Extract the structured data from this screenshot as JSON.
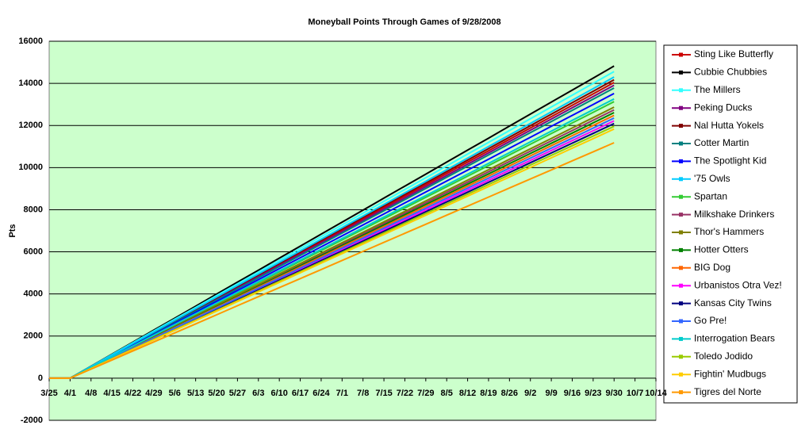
{
  "chart_data": {
    "type": "line",
    "title": "Moneyball Points  Through Games of 9/28/2008",
    "y_label": "Pts",
    "categories": [
      "3/25",
      "4/1",
      "4/8",
      "4/15",
      "4/22",
      "4/29",
      "5/6",
      "5/13",
      "5/20",
      "5/27",
      "6/3",
      "6/10",
      "6/17",
      "6/24",
      "7/1",
      "7/8",
      "7/15",
      "7/22",
      "7/29",
      "8/5",
      "8/12",
      "8/19",
      "8/26",
      "9/2",
      "9/9",
      "9/16",
      "9/23",
      "9/30",
      "10/7",
      "10/14"
    ],
    "ylim": [
      -2000,
      16000
    ],
    "yticks": [
      -2000,
      0,
      2000,
      4000,
      6000,
      8000,
      10000,
      12000,
      14000,
      16000
    ],
    "grid": true,
    "legend": "right",
    "series": [
      {
        "name": "Sting Like Butterfly",
        "color": "#cc0000",
        "values": [
          0,
          0,
          540,
          1080,
          1620,
          2160,
          2700,
          3240,
          3780,
          4320,
          4860,
          5400,
          5940,
          6480,
          7020,
          7560,
          8100,
          8640,
          9180,
          9720,
          10260,
          10800,
          11340,
          11880,
          12420,
          12960,
          13500,
          14040,
          null,
          null
        ]
      },
      {
        "name": "Cubbie Chubbies",
        "color": "#000000",
        "values": [
          0,
          0,
          570,
          1140,
          1710,
          2280,
          2850,
          3420,
          3990,
          4560,
          5130,
          5700,
          6270,
          6840,
          7410,
          7980,
          8550,
          9120,
          9690,
          10260,
          10830,
          11400,
          11970,
          12540,
          13110,
          13680,
          14250,
          14820,
          null,
          null
        ]
      },
      {
        "name": "The Millers",
        "color": "#33ffff",
        "values": [
          0,
          0,
          560,
          1120,
          1680,
          2240,
          2800,
          3360,
          3920,
          4480,
          5040,
          5600,
          6160,
          6720,
          7280,
          7840,
          8400,
          8960,
          9520,
          10080,
          10640,
          11200,
          11760,
          12320,
          12880,
          13440,
          14000,
          14560,
          null,
          null
        ]
      },
      {
        "name": "Peking Ducks",
        "color": "#800080",
        "values": [
          0,
          0,
          535,
          1070,
          1605,
          2140,
          2675,
          3210,
          3745,
          4280,
          4815,
          5350,
          5885,
          6420,
          6955,
          7490,
          8025,
          8560,
          9095,
          9630,
          10165,
          10700,
          11235,
          11770,
          12305,
          12840,
          13375,
          13910,
          null,
          null
        ]
      },
      {
        "name": "Nal Hutta Yokels",
        "color": "#800000",
        "values": [
          0,
          0,
          545,
          1090,
          1635,
          2180,
          2725,
          3270,
          3815,
          4360,
          4905,
          5450,
          5995,
          6540,
          7085,
          7630,
          8175,
          8720,
          9265,
          9810,
          10355,
          10900,
          11445,
          11990,
          12535,
          13080,
          13625,
          14170,
          null,
          null
        ]
      },
      {
        "name": "Cotter Martin",
        "color": "#008080",
        "values": [
          0,
          0,
          530,
          1060,
          1590,
          2120,
          2650,
          3180,
          3710,
          4240,
          4770,
          5300,
          5830,
          6360,
          6890,
          7420,
          7950,
          8480,
          9010,
          9540,
          10070,
          10600,
          11130,
          11660,
          12190,
          12720,
          13250,
          13780,
          null,
          null
        ]
      },
      {
        "name": "The Spotlight Kid",
        "color": "#0000ff",
        "values": [
          0,
          0,
          520,
          1040,
          1560,
          2080,
          2600,
          3120,
          3640,
          4160,
          4680,
          5200,
          5720,
          6240,
          6760,
          7280,
          7800,
          8320,
          8840,
          9360,
          9880,
          10400,
          10920,
          11440,
          11960,
          12480,
          13000,
          13520,
          null,
          null
        ]
      },
      {
        "name": "'75 Owls",
        "color": "#00ccff",
        "values": [
          0,
          0,
          550,
          1100,
          1650,
          2200,
          2750,
          3300,
          3850,
          4400,
          4950,
          5500,
          6050,
          6600,
          7150,
          7700,
          8250,
          8800,
          9350,
          9900,
          10450,
          11000,
          11550,
          12100,
          12650,
          13200,
          13750,
          14300,
          null,
          null
        ]
      },
      {
        "name": "Spartan",
        "color": "#33cc33",
        "values": [
          0,
          0,
          505,
          1010,
          1515,
          2020,
          2525,
          3030,
          3535,
          4040,
          4545,
          5050,
          5555,
          6060,
          6565,
          7070,
          7575,
          8080,
          8585,
          9090,
          9595,
          10100,
          10605,
          11110,
          11615,
          12120,
          12625,
          13130,
          null,
          null
        ]
      },
      {
        "name": "Milkshake Drinkers",
        "color": "#993366",
        "values": [
          0,
          0,
          490,
          980,
          1470,
          1960,
          2450,
          2940,
          3430,
          3920,
          4410,
          4900,
          5390,
          5880,
          6370,
          6860,
          7350,
          7840,
          8330,
          8820,
          9310,
          9800,
          10290,
          10780,
          11270,
          11760,
          12250,
          12740,
          null,
          null
        ]
      },
      {
        "name": "Thor's Hammers",
        "color": "#808000",
        "values": [
          0,
          0,
          495,
          990,
          1485,
          1980,
          2475,
          2970,
          3465,
          3960,
          4455,
          4950,
          5445,
          5940,
          6435,
          6930,
          7425,
          7920,
          8415,
          8910,
          9405,
          9900,
          10395,
          10890,
          11385,
          11880,
          12375,
          12870,
          null,
          null
        ]
      },
      {
        "name": "Hotter Otters",
        "color": "#008000",
        "values": [
          0,
          0,
          485,
          970,
          1455,
          1940,
          2425,
          2910,
          3395,
          3880,
          4365,
          4850,
          5335,
          5820,
          6305,
          6790,
          7275,
          7760,
          8245,
          8730,
          9215,
          9700,
          10185,
          10670,
          11155,
          11640,
          12125,
          12610,
          null,
          null
        ]
      },
      {
        "name": "BIG Dog",
        "color": "#ff6600",
        "values": [
          0,
          0,
          480,
          960,
          1440,
          1920,
          2400,
          2880,
          3360,
          3840,
          4320,
          4800,
          5280,
          5760,
          6240,
          6720,
          7200,
          7680,
          8160,
          8640,
          9120,
          9600,
          10080,
          10560,
          11040,
          11520,
          12000,
          12480,
          null,
          null
        ]
      },
      {
        "name": "Urbanistos Otra Vez!",
        "color": "#ff00ff",
        "values": [
          0,
          0,
          470,
          940,
          1410,
          1880,
          2350,
          2820,
          3290,
          3760,
          4230,
          4700,
          5170,
          5640,
          6110,
          6580,
          7050,
          7520,
          7990,
          8460,
          8930,
          9400,
          9870,
          10340,
          10810,
          11280,
          11750,
          12220,
          null,
          null
        ]
      },
      {
        "name": "Kansas City Twins",
        "color": "#000080",
        "values": [
          0,
          0,
          465,
          930,
          1395,
          1860,
          2325,
          2790,
          3255,
          3720,
          4185,
          4650,
          5115,
          5580,
          6045,
          6510,
          6975,
          7440,
          7905,
          8370,
          8835,
          9300,
          9765,
          10230,
          10695,
          11160,
          11625,
          12090,
          null,
          null
        ]
      },
      {
        "name": "Go Pre!",
        "color": "#3366ff",
        "values": [
          0,
          0,
          475,
          950,
          1425,
          1900,
          2375,
          2850,
          3325,
          3800,
          4275,
          4750,
          5225,
          5700,
          6175,
          6650,
          7125,
          7600,
          8075,
          8550,
          9025,
          9500,
          9975,
          10450,
          10925,
          11400,
          11875,
          12350,
          null,
          null
        ]
      },
      {
        "name": "Interrogation Bears",
        "color": "#00cccc",
        "values": [
          0,
          0,
          510,
          1020,
          1530,
          2040,
          2550,
          3060,
          3570,
          4080,
          4590,
          5100,
          5610,
          6120,
          6630,
          7140,
          7650,
          8160,
          8670,
          9180,
          9690,
          10200,
          10710,
          11220,
          11730,
          12240,
          12750,
          13260,
          null,
          null
        ]
      },
      {
        "name": "Toledo Jodido",
        "color": "#99cc00",
        "values": [
          0,
          0,
          460,
          920,
          1380,
          1840,
          2300,
          2760,
          3220,
          3680,
          4140,
          4600,
          5060,
          5520,
          5980,
          6440,
          6900,
          7360,
          7820,
          8280,
          8740,
          9200,
          9660,
          10120,
          10580,
          11040,
          11500,
          11960,
          null,
          null
        ]
      },
      {
        "name": "Fightin' Mudbugs",
        "color": "#ffcc00",
        "values": [
          0,
          0,
          455,
          910,
          1365,
          1820,
          2275,
          2730,
          3185,
          3640,
          4095,
          4550,
          5005,
          5460,
          5915,
          6370,
          6825,
          7280,
          7735,
          8190,
          8645,
          9100,
          9555,
          10010,
          10465,
          10920,
          11375,
          11830,
          null,
          null
        ]
      },
      {
        "name": "Tigres del Norte",
        "color": "#ff9900",
        "values": [
          0,
          0,
          430,
          860,
          1290,
          1720,
          2150,
          2580,
          3010,
          3440,
          3870,
          4300,
          4730,
          5160,
          5590,
          6020,
          6450,
          6880,
          7310,
          7740,
          8170,
          8600,
          9030,
          9460,
          9890,
          10320,
          10750,
          11180,
          null,
          null
        ]
      }
    ]
  }
}
